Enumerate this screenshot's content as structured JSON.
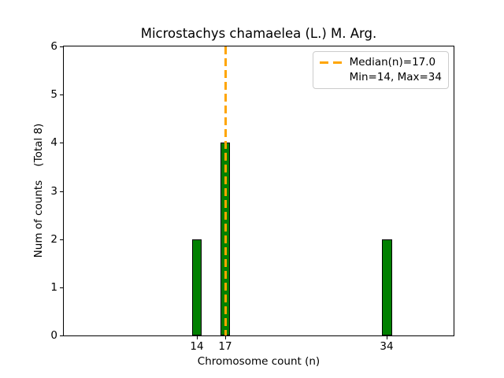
{
  "chart_data": {
    "type": "bar",
    "title": "Microstachys chamaelea (L.) M. Arg.",
    "xlabel": "Chromosome count (n)",
    "ylabel": "Num of counts    (Total 8)",
    "x": [
      14,
      17,
      34
    ],
    "values": [
      2,
      4,
      2
    ],
    "bar_width": 1,
    "xlim": [
      0,
      41
    ],
    "ylim": [
      0,
      6
    ],
    "xticks": [
      14,
      17,
      34
    ],
    "yticks": [
      0,
      1,
      2,
      3,
      4,
      5,
      6
    ],
    "grid": false,
    "median_line": {
      "x": 17.0,
      "color": "#FFA500",
      "style": "dashed"
    },
    "stats": {
      "median": 17.0,
      "min": 14,
      "max": 34,
      "total_counts": 8
    },
    "colors": {
      "bar_fill": "#008000",
      "bar_edge": "#000000",
      "median_line": "#FFA500",
      "legend_border": "#cccccc"
    },
    "legend": {
      "position": "upper right",
      "entries": [
        {
          "label": "Median(n)=17.0",
          "marker": "dashed-line",
          "marker_color": "#FFA500"
        },
        {
          "label": "Min=14, Max=34",
          "marker": "none"
        }
      ]
    }
  }
}
